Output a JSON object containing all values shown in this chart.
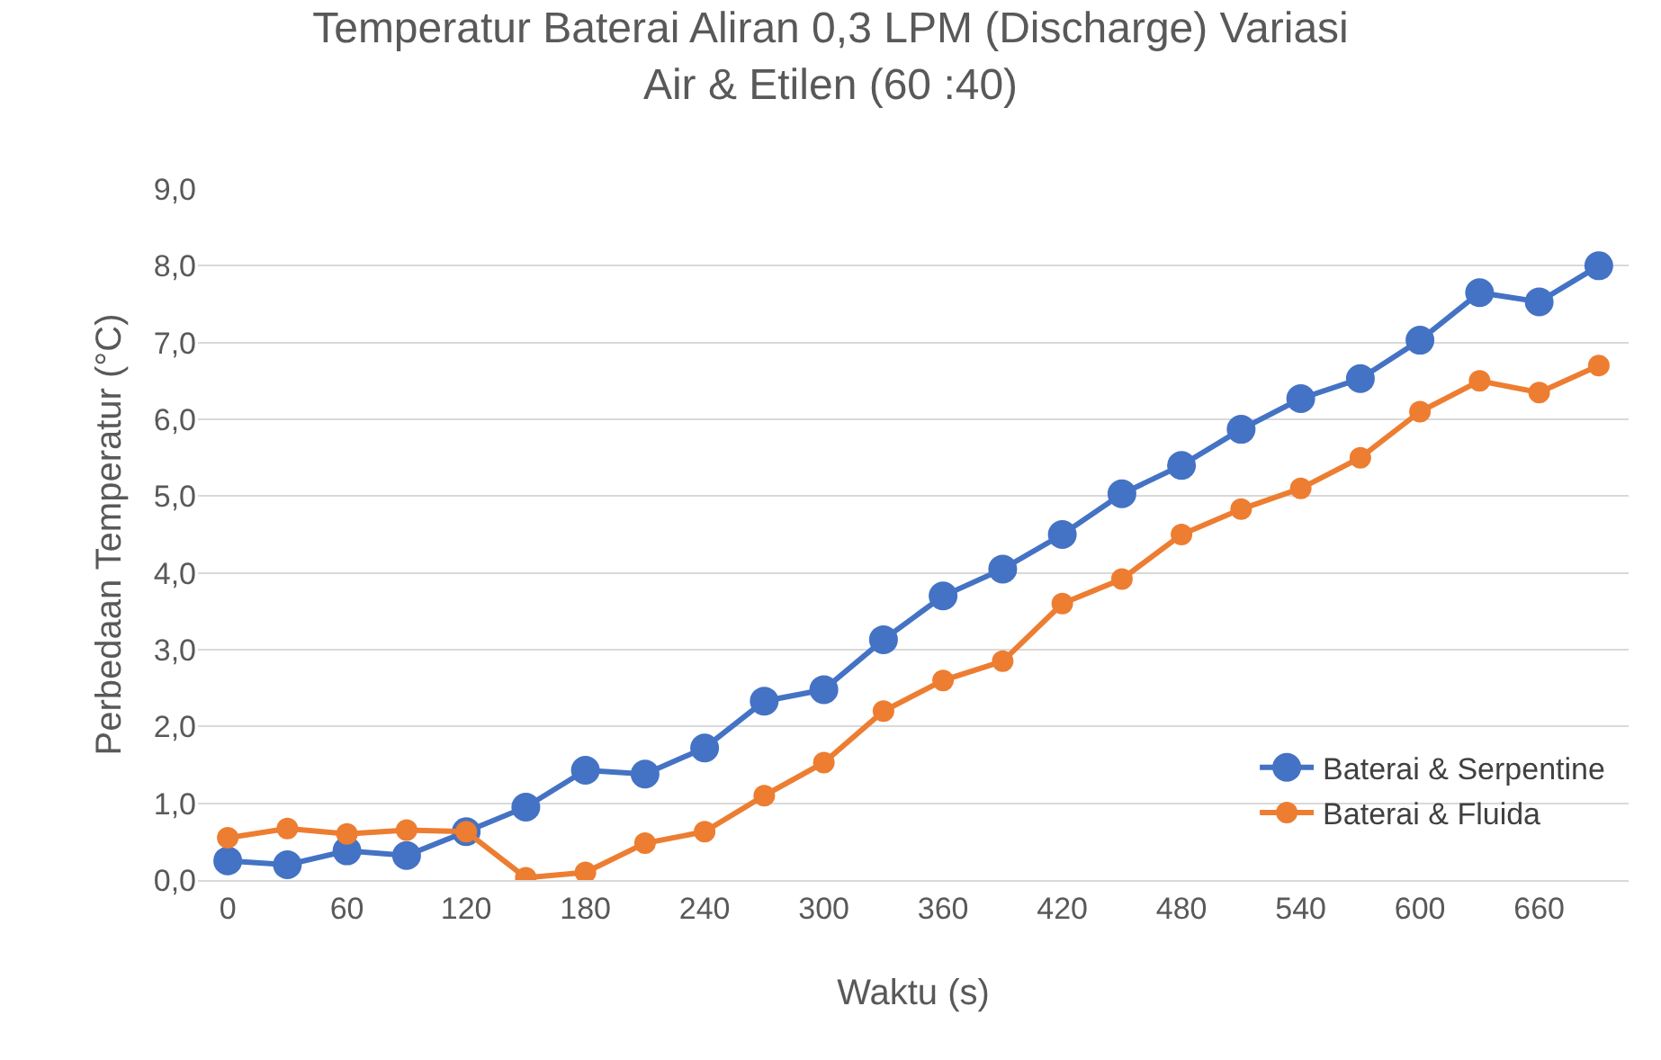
{
  "chart_data": {
    "type": "line",
    "title": "Temperatur Baterai Aliran 0,3 LPM (Discharge) Variasi\nAir & Etilen (60 :40)",
    "xlabel": "Waktu (s)",
    "ylabel": "Perbedaan Temperatur (°C)",
    "x": [
      0,
      30,
      60,
      90,
      120,
      150,
      180,
      210,
      240,
      270,
      300,
      330,
      360,
      390,
      420,
      450,
      480,
      510,
      540,
      570,
      600,
      630,
      660,
      690
    ],
    "series": [
      {
        "name": "Baterai & Serpentine",
        "color": "#4472c4",
        "values": [
          0.25,
          0.2,
          0.38,
          0.32,
          0.63,
          0.95,
          1.43,
          1.38,
          1.72,
          2.33,
          2.48,
          3.13,
          3.7,
          4.05,
          4.5,
          5.03,
          5.4,
          5.87,
          6.27,
          6.53,
          7.03,
          7.65,
          7.53,
          8.0
        ]
      },
      {
        "name": "Baterai & Fluida",
        "color": "#ed7d31",
        "values": [
          0.55,
          0.67,
          0.6,
          0.65,
          0.63,
          0.03,
          0.1,
          0.48,
          0.63,
          1.1,
          1.53,
          2.2,
          2.6,
          2.85,
          3.6,
          3.92,
          4.5,
          4.83,
          5.1,
          5.5,
          6.1,
          6.5,
          6.35,
          6.7
        ]
      }
    ],
    "xlim": [
      -15,
      705
    ],
    "xticks": [
      0,
      60,
      120,
      180,
      240,
      300,
      360,
      420,
      480,
      540,
      600,
      660
    ],
    "ylim": [
      0,
      9
    ],
    "yticks": [
      {
        "value": 0,
        "label": "0,0"
      },
      {
        "value": 1,
        "label": "1,0"
      },
      {
        "value": 2,
        "label": "2,0"
      },
      {
        "value": 3,
        "label": "3,0"
      },
      {
        "value": 4,
        "label": "4,0"
      },
      {
        "value": 5,
        "label": "5,0"
      },
      {
        "value": 6,
        "label": "6,0"
      },
      {
        "value": 7,
        "label": "7,0"
      },
      {
        "value": 8,
        "label": "8,0"
      },
      {
        "value": 9,
        "label": "9,0"
      }
    ],
    "grid": "y",
    "legend": "bottom right",
    "marker": "circle",
    "line_style": "solid"
  }
}
